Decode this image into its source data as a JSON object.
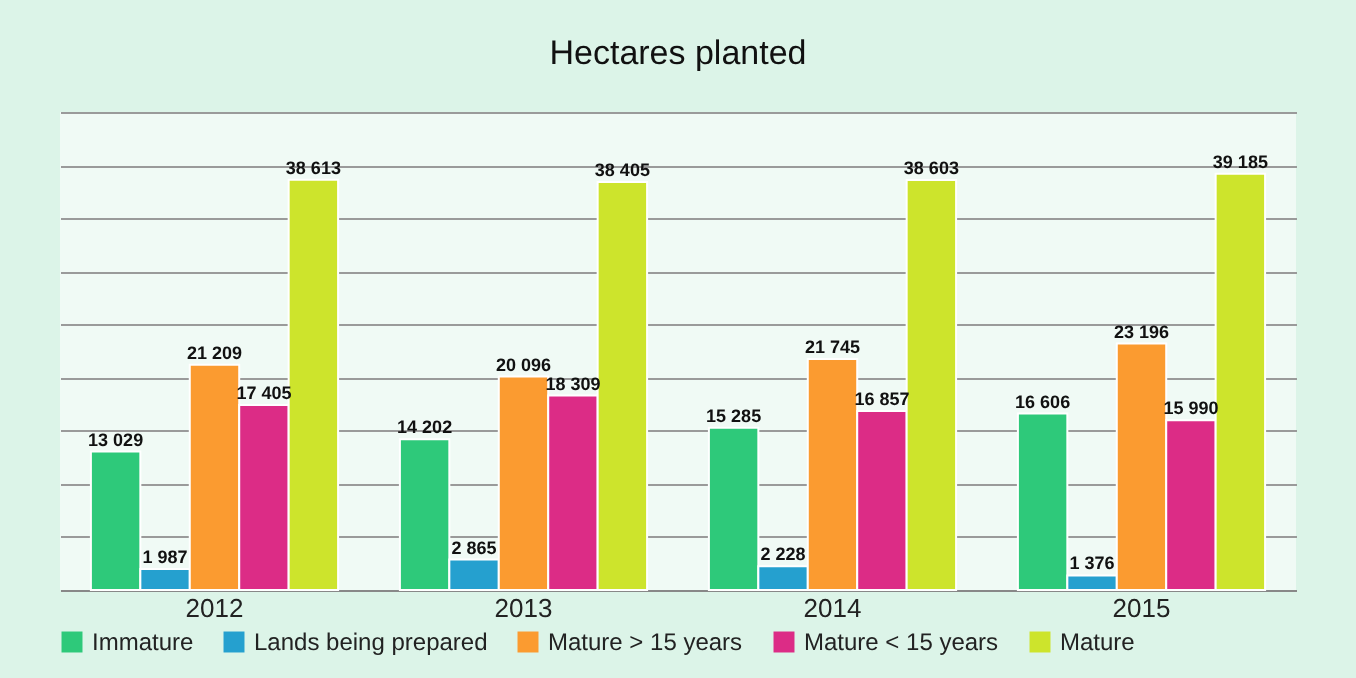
{
  "chart_data": {
    "type": "bar",
    "title": "Hectares planted",
    "categories": [
      "2012",
      "2013",
      "2014",
      "2015"
    ],
    "series": [
      {
        "name": "Immature",
        "color": "#2ec97a",
        "values": [
          13029,
          14202,
          15285,
          16606
        ],
        "value_labels": [
          "13 029",
          "14 202",
          "15 285",
          "16 606"
        ]
      },
      {
        "name": "Lands being prepared",
        "color": "#25a0cf",
        "values": [
          1987,
          2865,
          2228,
          1376
        ],
        "value_labels": [
          "1 987",
          "2 865",
          "2 228",
          "1 376"
        ]
      },
      {
        "name": "Mature > 15 years",
        "color": "#fb9b30",
        "values": [
          21209,
          20096,
          21745,
          23196
        ],
        "value_labels": [
          "21 209",
          "20 096",
          "21 745",
          "23 196"
        ]
      },
      {
        "name": "Mature < 15 years",
        "color": "#dc2c86",
        "values": [
          17405,
          18309,
          16857,
          15990
        ],
        "value_labels": [
          "17 405",
          "18 309",
          "16 857",
          "15 990"
        ]
      },
      {
        "name": "Mature",
        "color": "#cde42c",
        "values": [
          38613,
          38405,
          38603,
          39185
        ],
        "value_labels": [
          "38 613",
          "38 405",
          "38 603",
          "39 185"
        ]
      }
    ],
    "ylim": [
      0,
      45000
    ],
    "yticks": [
      {
        "value": 0,
        "label": null
      },
      {
        "value": 5000,
        "label": null
      },
      {
        "value": 10000,
        "label": null
      },
      {
        "value": 15000,
        "label": null
      },
      {
        "value": 20000,
        "label": null
      },
      {
        "value": 25000,
        "label": null
      },
      {
        "value": 30000,
        "label": null
      },
      {
        "value": 35000,
        "label": null
      },
      {
        "value": 40000,
        "label": null
      },
      {
        "value": 45000,
        "label": null
      }
    ],
    "grid": "y",
    "legend": "bottom",
    "tick_labels": "x"
  }
}
